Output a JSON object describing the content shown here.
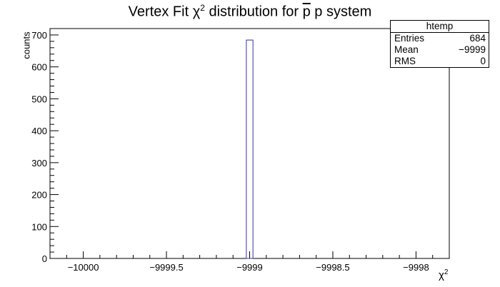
{
  "chart_data": {
    "type": "bar",
    "title": "Vertex Fit χ² distribution for p̄ p system",
    "title_parts": {
      "prefix": "Vertex Fit χ",
      "sup": "2",
      "mid": " distribution for ",
      "pbar": "p",
      "suffix": " p system"
    },
    "xlabel": "χ²",
    "xlabel_parts": {
      "base": "χ",
      "sup": "2"
    },
    "ylabel": "counts",
    "xlim": [
      -10000.2,
      -9997.8
    ],
    "ylim": [
      0,
      720
    ],
    "x_ticks": [
      -10000,
      -9999.5,
      -9999,
      -9998.5,
      -9998
    ],
    "x_tick_labels": [
      "−10000",
      "−9999.5",
      "−9999",
      "−9998.5",
      "−9998"
    ],
    "y_ticks": [
      0,
      100,
      200,
      300,
      400,
      500,
      600,
      700
    ],
    "y_tick_labels": [
      "0",
      "100",
      "200",
      "300",
      "400",
      "500",
      "600",
      "700"
    ],
    "bins": [
      {
        "x_low": -9999.02,
        "x_high": -9998.98,
        "value": 684
      }
    ],
    "grid": false,
    "legend": "none",
    "colors": {
      "bar_line": "#3333aa",
      "axis": "#000000"
    }
  },
  "stats_box": {
    "name": "htemp",
    "rows": [
      {
        "label": "Entries",
        "value": "684"
      },
      {
        "label": "Mean",
        "value": "−9999"
      },
      {
        "label": "RMS",
        "value": "0"
      }
    ]
  }
}
